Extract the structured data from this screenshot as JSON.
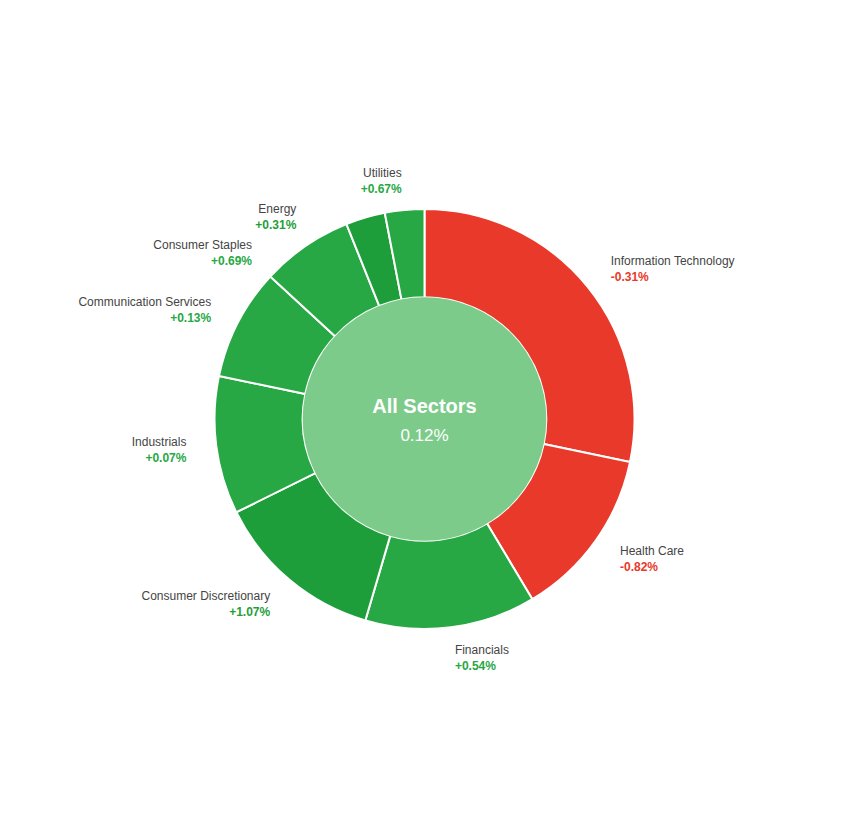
{
  "chart_data": {
    "type": "donut",
    "categories": [
      "Information Technology",
      "Health Care",
      "Financials",
      "Consumer Discretionary",
      "Industrials",
      "Communication Services",
      "Consumer Staples",
      "Energy",
      "Utilities"
    ],
    "values": [
      28.0,
      13.0,
      13.0,
      13.0,
      10.5,
      8.5,
      7.0,
      3.0,
      3.0
    ],
    "colors": [
      "#E8392A",
      "#E8392A",
      "#27A844",
      "#1E9E3A",
      "#27A844",
      "#27A844",
      "#27A844",
      "#1E9E3A",
      "#27A844"
    ],
    "changes": [
      -0.31,
      -0.82,
      0.54,
      1.07,
      0.07,
      0.13,
      0.69,
      0.31,
      0.67
    ],
    "change_labels": [
      "-0.31%",
      "-0.82%",
      "+0.54%",
      "+1.07%",
      "+0.07%",
      "+0.13%",
      "+0.69%",
      "+0.31%",
      "+0.67%"
    ],
    "center_label": "All Sectors",
    "center_value_label": "0.12%",
    "center_color": "#7DCB8A"
  }
}
